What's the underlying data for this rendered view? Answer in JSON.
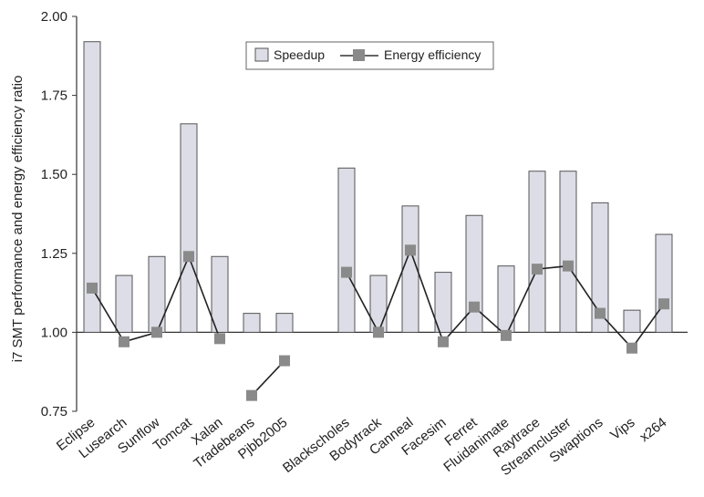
{
  "chart_data": {
    "type": "bar",
    "xlabel": "",
    "ylabel": "i7 SMT performance and energy efficiency ratio",
    "ylim": [
      0.75,
      2.0
    ],
    "yticks": [
      "0.75",
      "1.00",
      "1.25",
      "1.50",
      "1.75",
      "2.00"
    ],
    "grid": false,
    "legend_position": "top-right",
    "categories": [
      "Eclipse",
      "Lusearch",
      "Sunflow",
      "Tomcat",
      "Xalan",
      "Tradebeans",
      "Pjbb2005",
      "Blackscholes",
      "Bodytrack",
      "Canneal",
      "Facesim",
      "Ferret",
      "Fluidanimate",
      "Raytrace",
      "Streamcluster",
      "Swaptions",
      "Vips",
      "x264"
    ],
    "series": [
      {
        "name": "Speedup",
        "type": "bar",
        "color": "#dcdde6",
        "values": [
          1.92,
          1.18,
          1.24,
          1.66,
          1.24,
          1.06,
          1.06,
          1.52,
          1.18,
          1.4,
          1.19,
          1.37,
          1.21,
          1.51,
          1.51,
          1.41,
          1.07,
          1.31
        ]
      },
      {
        "name": "Energy efficiency",
        "type": "line",
        "color": "#8a8a8a",
        "values": [
          1.14,
          0.97,
          1.0,
          1.24,
          0.98,
          0.8,
          0.91,
          1.19,
          1.0,
          1.26,
          0.97,
          1.08,
          0.99,
          1.2,
          1.21,
          1.06,
          0.95,
          1.09
        ],
        "segments": [
          [
            0,
            4
          ],
          [
            5,
            6
          ],
          [
            7,
            17
          ]
        ]
      }
    ]
  }
}
